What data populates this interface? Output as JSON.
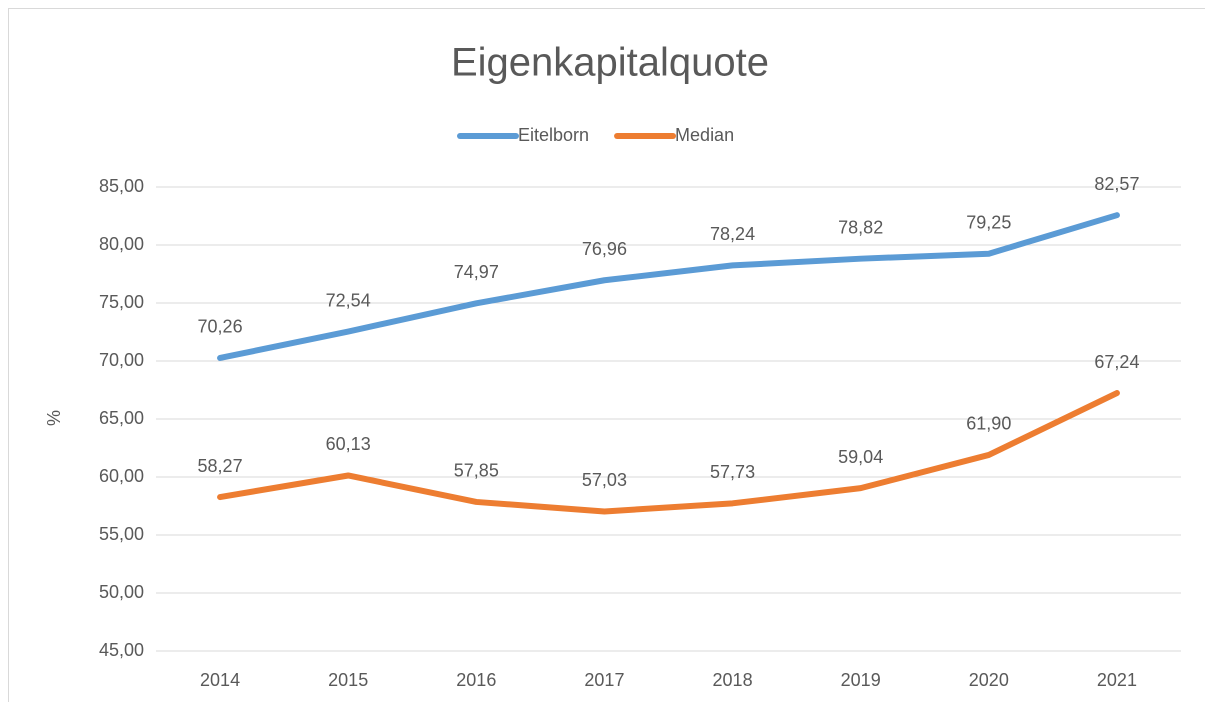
{
  "chart_data": {
    "type": "line",
    "title": "Eigenkapitalquote",
    "y_label": "%",
    "categories": [
      "2014",
      "2015",
      "2016",
      "2017",
      "2018",
      "2019",
      "2020",
      "2021"
    ],
    "series": [
      {
        "name": "Eitelborn",
        "color": "#5b9bd5",
        "values": [
          70.26,
          72.54,
          74.97,
          76.96,
          78.24,
          78.82,
          79.25,
          82.57
        ],
        "value_labels": [
          "70,26",
          "72,54",
          "74,97",
          "76,96",
          "78,24",
          "78,82",
          "79,25",
          "82,57"
        ]
      },
      {
        "name": "Median",
        "color": "#ed7d31",
        "values": [
          58.27,
          60.13,
          57.85,
          57.03,
          57.73,
          59.04,
          61.9,
          67.24
        ],
        "value_labels": [
          "58,27",
          "60,13",
          "57,85",
          "57,03",
          "57,73",
          "59,04",
          "61,90",
          "67,24"
        ]
      }
    ],
    "ylim": [
      45,
      85
    ],
    "yticks": [
      {
        "value": 45,
        "label": "45,00"
      },
      {
        "value": 50,
        "label": "50,00"
      },
      {
        "value": 55,
        "label": "55,00"
      },
      {
        "value": 60,
        "label": "60,00"
      },
      {
        "value": 65,
        "label": "65,00"
      },
      {
        "value": 70,
        "label": "70,00"
      },
      {
        "value": 75,
        "label": "75,00"
      },
      {
        "value": 80,
        "label": "80,00"
      },
      {
        "value": 85,
        "label": "85,00"
      }
    ],
    "grid": true,
    "legend": "top"
  }
}
